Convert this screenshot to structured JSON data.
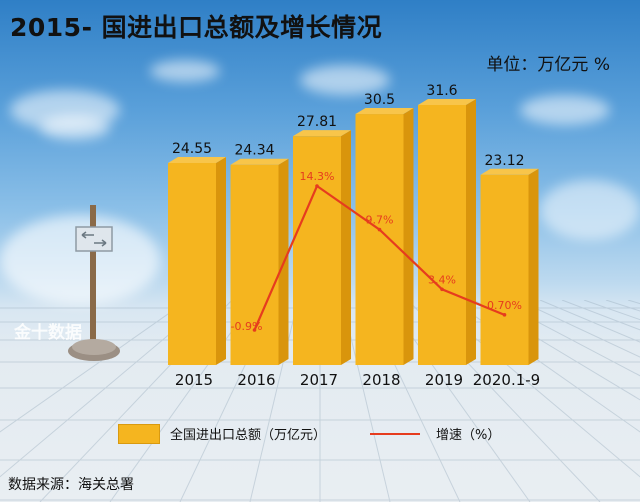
{
  "title": "2015-      国进出口总额及增长情况",
  "unit": "单位：万亿元    %",
  "legend": {
    "bar_label": "全国进出口总额（万亿元）",
    "line_label": "增速（%）"
  },
  "source": "数据来源：海关总署",
  "watermark": "金十数据",
  "colors": {
    "bar": "#f5b51f",
    "bar_side": "#d9950c",
    "line": "#e63c1e",
    "pct_text": "#e63c1e"
  },
  "chart_data": {
    "type": "bar",
    "categories": [
      "2015",
      "2016",
      "2017",
      "2018",
      "2019",
      "2020.1-9"
    ],
    "series": [
      {
        "name": "全国进出口总额（万亿元）",
        "type": "bar",
        "values": [
          24.55,
          24.34,
          27.81,
          30.5,
          31.6,
          23.12
        ],
        "labels": [
          "24.55",
          "24.34",
          "27.81",
          "30.5",
          "31.6",
          "23.12"
        ]
      },
      {
        "name": "增速（%）",
        "type": "line",
        "values": [
          null,
          -0.9,
          14.3,
          9.7,
          3.4,
          0.7
        ],
        "labels": [
          "",
          "-0.9%",
          "14.3%",
          "9.7%",
          "3.4%",
          "0.70%"
        ]
      }
    ]
  }
}
